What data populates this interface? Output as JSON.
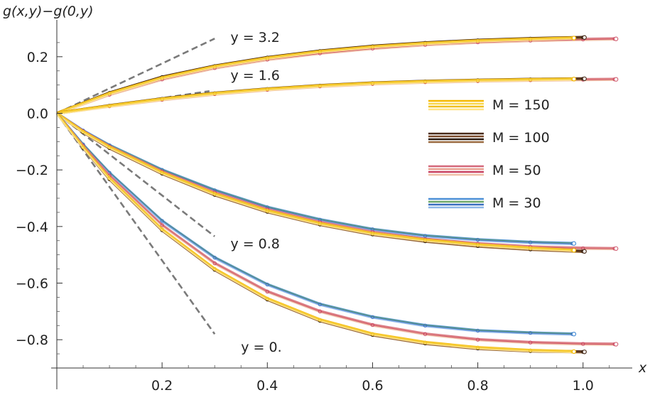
{
  "chart_data": {
    "type": "line",
    "xlabel": "x",
    "ylabel": "g(x,y)−g(0,y)",
    "xlim": [
      0,
      1.08
    ],
    "ylim": [
      -0.9,
      0.3
    ],
    "xticks": [
      0.2,
      0.4,
      0.6,
      0.8,
      1.0
    ],
    "xtick_labels": [
      "0.2",
      "0.4",
      "0.6",
      "0.8",
      "1.0"
    ],
    "yticks": [
      0.2,
      0.0,
      -0.2,
      -0.4,
      -0.6,
      -0.8
    ],
    "ytick_labels": [
      "0.2",
      "0.0",
      "−0.2",
      "−0.4",
      "−0.6",
      "−0.8"
    ],
    "grid": false,
    "legend_position": "right",
    "legend": [
      {
        "label": "M = 150",
        "colors": [
          "#f5b800",
          "#f9d74e",
          "#f0c020",
          "#ffe58a"
        ]
      },
      {
        "label": "M = 100",
        "colors": [
          "#4a2c1a",
          "#7a4a2a",
          "#2a1a10",
          "#9a6a40"
        ]
      },
      {
        "label": "M = 50",
        "colors": [
          "#d4687a",
          "#e8a090",
          "#c84060",
          "#f0c0a8"
        ]
      },
      {
        "label": "M = 30",
        "colors": [
          "#4b8fd6",
          "#6fa86a",
          "#3a6fc0",
          "#8fb8e8"
        ]
      }
    ],
    "annotations": [
      {
        "text": "y = 3.2",
        "x": 0.33,
        "y": 0.27
      },
      {
        "text": "y = 1.6",
        "x": 0.33,
        "y": 0.135
      },
      {
        "text": "y = 0.8",
        "x": 0.33,
        "y": -0.46
      },
      {
        "text": "y = 0.",
        "x": 0.35,
        "y": -0.825
      }
    ],
    "tangent_lines": [
      {
        "label": "y = 3.2",
        "slope": 0.88,
        "x_end": 0.3
      },
      {
        "label": "y = 1.6",
        "slope": 0.27,
        "x_end": 0.29
      },
      {
        "label": "y = 0.8",
        "slope": -1.45,
        "x_end": 0.3
      },
      {
        "label": "y = 0.",
        "slope": -2.6,
        "x_end": 0.3
      }
    ],
    "curve_groups": [
      {
        "label": "y = 3.2",
        "series": [
          {
            "name": "M = 150",
            "x": [
              0,
              0.1,
              0.2,
              0.3,
              0.4,
              0.5,
              0.6,
              0.7,
              0.8,
              0.9,
              0.98
            ],
            "y": [
              0,
              0.07,
              0.125,
              0.165,
              0.195,
              0.218,
              0.235,
              0.247,
              0.256,
              0.262,
              0.266
            ]
          },
          {
            "name": "M = 100",
            "x": [
              0,
              0.1,
              0.2,
              0.3,
              0.4,
              0.5,
              0.6,
              0.7,
              0.8,
              0.9,
              1.0
            ],
            "y": [
              0,
              0.072,
              0.128,
              0.167,
              0.197,
              0.22,
              0.237,
              0.249,
              0.258,
              0.264,
              0.268
            ]
          },
          {
            "name": "M = 50",
            "x": [
              0,
              0.1,
              0.2,
              0.3,
              0.4,
              0.5,
              0.6,
              0.7,
              0.8,
              0.9,
              1.0,
              1.06
            ],
            "y": [
              0,
              0.066,
              0.12,
              0.16,
              0.19,
              0.212,
              0.229,
              0.242,
              0.251,
              0.257,
              0.261,
              0.263
            ]
          }
        ]
      },
      {
        "label": "y = 1.6",
        "series": [
          {
            "name": "M = 150",
            "x": [
              0,
              0.1,
              0.2,
              0.3,
              0.4,
              0.5,
              0.6,
              0.7,
              0.8,
              0.9,
              0.98
            ],
            "y": [
              0,
              0.026,
              0.05,
              0.07,
              0.085,
              0.097,
              0.106,
              0.112,
              0.116,
              0.119,
              0.121
            ]
          },
          {
            "name": "M = 100",
            "x": [
              0,
              0.1,
              0.2,
              0.3,
              0.4,
              0.5,
              0.6,
              0.7,
              0.8,
              0.9,
              1.0
            ],
            "y": [
              0,
              0.027,
              0.051,
              0.071,
              0.086,
              0.098,
              0.107,
              0.113,
              0.117,
              0.12,
              0.122
            ]
          },
          {
            "name": "M = 50",
            "x": [
              0,
              0.1,
              0.2,
              0.3,
              0.4,
              0.5,
              0.6,
              0.7,
              0.8,
              0.9,
              1.0,
              1.06
            ],
            "y": [
              0,
              0.025,
              0.048,
              0.068,
              0.083,
              0.095,
              0.104,
              0.11,
              0.114,
              0.117,
              0.119,
              0.12
            ]
          }
        ]
      },
      {
        "label": "y = 0.8",
        "series": [
          {
            "name": "M = 150",
            "x": [
              0,
              0.05,
              0.1,
              0.2,
              0.3,
              0.4,
              0.5,
              0.6,
              0.7,
              0.8,
              0.9,
              0.98
            ],
            "y": [
              0,
              -0.065,
              -0.12,
              -0.21,
              -0.285,
              -0.345,
              -0.39,
              -0.425,
              -0.448,
              -0.465,
              -0.477,
              -0.484
            ]
          },
          {
            "name": "M = 100",
            "x": [
              0,
              0.05,
              0.1,
              0.2,
              0.3,
              0.4,
              0.5,
              0.6,
              0.7,
              0.8,
              0.9,
              1.0
            ],
            "y": [
              0,
              -0.067,
              -0.123,
              -0.213,
              -0.288,
              -0.348,
              -0.393,
              -0.428,
              -0.452,
              -0.469,
              -0.481,
              -0.488
            ]
          },
          {
            "name": "M = 50",
            "x": [
              0,
              0.05,
              0.1,
              0.2,
              0.3,
              0.4,
              0.5,
              0.6,
              0.7,
              0.8,
              0.9,
              1.0,
              1.06
            ],
            "y": [
              0,
              -0.063,
              -0.117,
              -0.206,
              -0.28,
              -0.34,
              -0.385,
              -0.42,
              -0.445,
              -0.461,
              -0.472,
              -0.477,
              -0.478
            ]
          },
          {
            "name": "M = 30",
            "x": [
              0,
              0.05,
              0.1,
              0.2,
              0.3,
              0.4,
              0.5,
              0.6,
              0.7,
              0.8,
              0.9,
              0.98
            ],
            "y": [
              0,
              -0.061,
              -0.113,
              -0.2,
              -0.272,
              -0.332,
              -0.376,
              -0.41,
              -0.433,
              -0.447,
              -0.456,
              -0.46
            ]
          }
        ]
      },
      {
        "label": "y = 0.",
        "series": [
          {
            "name": "M = 150",
            "x": [
              0,
              0.05,
              0.1,
              0.2,
              0.3,
              0.4,
              0.5,
              0.6,
              0.7,
              0.8,
              0.9,
              0.98
            ],
            "y": [
              0,
              -0.12,
              -0.23,
              -0.41,
              -0.55,
              -0.655,
              -0.73,
              -0.78,
              -0.81,
              -0.828,
              -0.838,
              -0.842
            ]
          },
          {
            "name": "M = 100",
            "x": [
              0,
              0.05,
              0.1,
              0.2,
              0.3,
              0.4,
              0.5,
              0.6,
              0.7,
              0.8,
              0.9,
              1.0
            ],
            "y": [
              0,
              -0.122,
              -0.233,
              -0.413,
              -0.553,
              -0.658,
              -0.733,
              -0.783,
              -0.813,
              -0.831,
              -0.84,
              -0.843
            ]
          },
          {
            "name": "M = 50",
            "x": [
              0,
              0.05,
              0.1,
              0.2,
              0.3,
              0.4,
              0.5,
              0.6,
              0.7,
              0.8,
              0.9,
              1.0,
              1.06
            ],
            "y": [
              0,
              -0.115,
              -0.22,
              -0.395,
              -0.53,
              -0.63,
              -0.7,
              -0.748,
              -0.78,
              -0.8,
              -0.81,
              -0.815,
              -0.816
            ]
          },
          {
            "name": "M = 30",
            "x": [
              0,
              0.05,
              0.1,
              0.2,
              0.3,
              0.4,
              0.5,
              0.6,
              0.7,
              0.8,
              0.9,
              0.98
            ],
            "y": [
              0,
              -0.11,
              -0.21,
              -0.38,
              -0.51,
              -0.605,
              -0.675,
              -0.72,
              -0.75,
              -0.768,
              -0.776,
              -0.78
            ]
          }
        ]
      }
    ]
  }
}
